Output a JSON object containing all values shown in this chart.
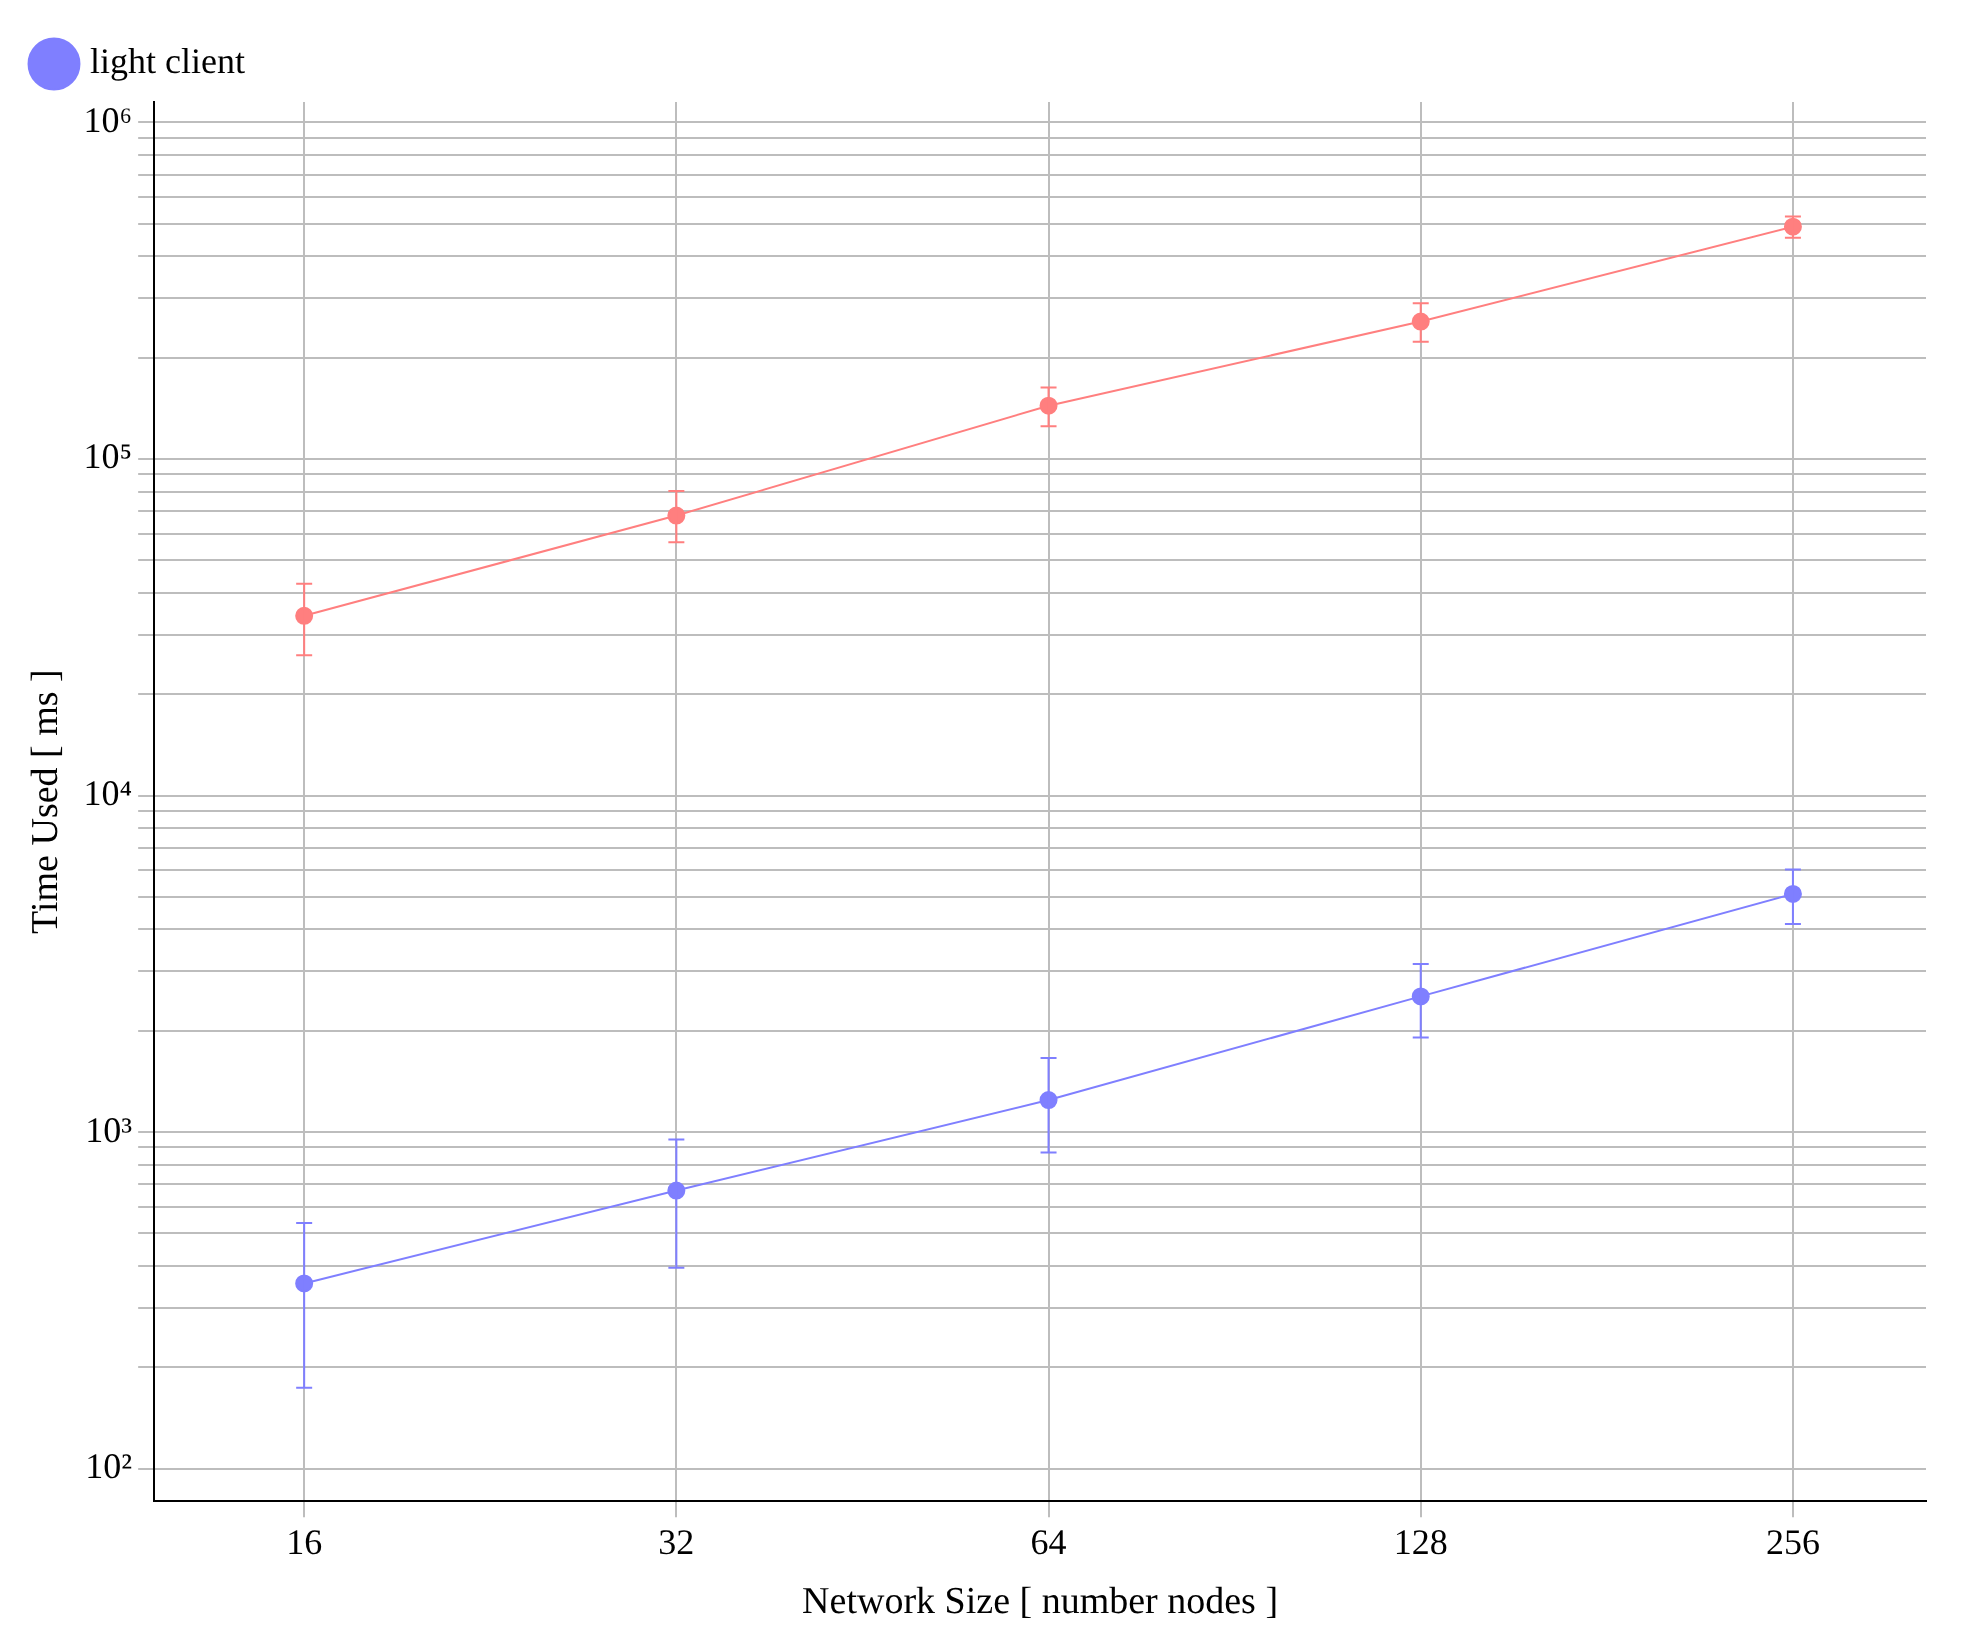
{
  "chart_data": {
    "type": "line",
    "xlabel": "Network Size [ number nodes ]",
    "ylabel": "Time Used [ ms ]",
    "x": [
      16,
      32,
      64,
      128,
      256
    ],
    "series": [
      {
        "name": "light client",
        "color": "#7f7fff",
        "values": [
          355,
          670,
          1245,
          2530,
          5100
        ],
        "errors": [
          [
            174,
            537
          ],
          [
            395,
            950
          ],
          [
            870,
            1660
          ],
          [
            1910,
            3160
          ],
          [
            4150,
            6030
          ]
        ]
      },
      {
        "color": "#ff7f7f",
        "values": [
          34200,
          67900,
          144000,
          256000,
          490000
        ],
        "errors": [
          [
            26100,
            42600
          ],
          [
            56600,
            80300
          ],
          [
            125000,
            163000
          ],
          [
            223000,
            290000
          ],
          [
            454000,
            525000
          ]
        ]
      }
    ],
    "log": "xy",
    "xlim": [
      12.1,
      328
    ],
    "xticks": [
      16,
      32,
      64,
      128,
      256
    ],
    "ylim": [
      80,
      1150000
    ],
    "yticks": [
      {
        "value": 100,
        "label": "10²"
      },
      {
        "value": 200,
        "label": null
      },
      {
        "value": 300,
        "label": null
      },
      {
        "value": 400,
        "label": null
      },
      {
        "value": 500,
        "label": null
      },
      {
        "value": 600,
        "label": null
      },
      {
        "value": 700,
        "label": null
      },
      {
        "value": 800,
        "label": null
      },
      {
        "value": 900,
        "label": null
      },
      {
        "value": 1000,
        "label": "10³"
      },
      {
        "value": 2000,
        "label": null
      },
      {
        "value": 3000,
        "label": null
      },
      {
        "value": 4000,
        "label": null
      },
      {
        "value": 5000,
        "label": null
      },
      {
        "value": 6000,
        "label": null
      },
      {
        "value": 7000,
        "label": null
      },
      {
        "value": 8000,
        "label": null
      },
      {
        "value": 9000,
        "label": null
      },
      {
        "value": 10000,
        "label": "10⁴"
      },
      {
        "value": 20000,
        "label": null
      },
      {
        "value": 30000,
        "label": null
      },
      {
        "value": 40000,
        "label": null
      },
      {
        "value": 50000,
        "label": null
      },
      {
        "value": 60000,
        "label": null
      },
      {
        "value": 70000,
        "label": null
      },
      {
        "value": 80000,
        "label": null
      },
      {
        "value": 90000,
        "label": null
      },
      {
        "value": 100000,
        "label": "10⁵"
      },
      {
        "value": 200000,
        "label": null
      },
      {
        "value": 300000,
        "label": null
      },
      {
        "value": 400000,
        "label": null
      },
      {
        "value": 500000,
        "label": null
      },
      {
        "value": 600000,
        "label": null
      },
      {
        "value": 700000,
        "label": null
      },
      {
        "value": 800000,
        "label": null
      },
      {
        "value": 900000,
        "label": null
      },
      {
        "value": 1000000,
        "label": "10⁶"
      }
    ],
    "grid": true,
    "legend": "top left",
    "marker": "circle",
    "line_style": "solid"
  }
}
